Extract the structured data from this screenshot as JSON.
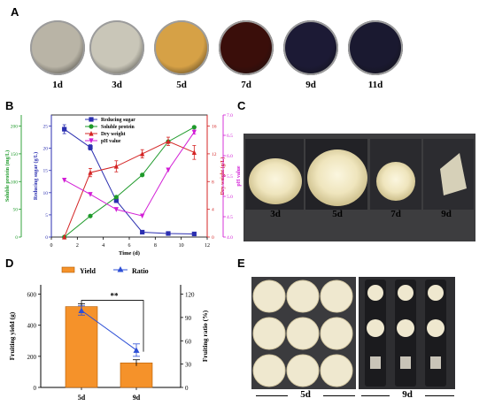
{
  "panels": {
    "a": "A",
    "b": "B",
    "c": "C",
    "d": "D",
    "e": "E"
  },
  "plates": {
    "labels": [
      "1d",
      "3d",
      "5d",
      "7d",
      "9d",
      "11d"
    ],
    "colors": [
      "#b9b4a6",
      "#c9c6b8",
      "#d6a146",
      "#3a0e0a",
      "#1c1a35",
      "#1a1930"
    ]
  },
  "photo_c": {
    "labels": [
      "3d",
      "5d",
      "7d",
      "9d"
    ]
  },
  "photo_e": {
    "labels": [
      "5d",
      "9d"
    ]
  },
  "chart_data": [
    {
      "type": "line",
      "x": [
        1,
        3,
        5,
        7,
        9,
        11
      ],
      "xlabel": "Time (d)",
      "xticks": [
        "0",
        "2",
        "4",
        "6",
        "8",
        "10",
        "12"
      ],
      "xlim": [
        0,
        12
      ],
      "series": [
        {
          "name": "Reducing sugar",
          "axis": "Reducing sugar (g/L)",
          "color": "#2b2fb0",
          "marker": "square",
          "values": [
            24.3,
            20.2,
            8.2,
            1.1,
            0.8,
            0.7
          ],
          "errors": [
            1.0,
            0.6,
            0.3,
            0.1,
            0.1,
            0.1
          ]
        },
        {
          "name": "Soluble protein",
          "axis": "Soluble protein (mg/L)",
          "color": "#1e9a2a",
          "marker": "circle",
          "values": [
            0,
            38,
            72,
            112,
            172,
            198
          ]
        },
        {
          "name": "Dry weight",
          "axis": "Dry weight (g/L)",
          "color": "#d42424",
          "marker": "triangle",
          "values": [
            0,
            9.3,
            10.2,
            12.0,
            13.8,
            12.2
          ],
          "errors": [
            0,
            0.6,
            0.8,
            0.6,
            0.6,
            1.0
          ]
        },
        {
          "name": "pH value",
          "axis": "pH value",
          "color": "#d21ed6",
          "marker": "triangle-down",
          "values": [
            5.4,
            5.05,
            4.68,
            4.52,
            5.65,
            6.58
          ],
          "errors": [
            0,
            0,
            0,
            0,
            0,
            0.05
          ]
        }
      ],
      "axes": {
        "soluble_protein": {
          "label": "Soluble protein (mg/L)",
          "ticks": [
            "0",
            "50",
            "100",
            "150",
            "200"
          ],
          "ylim": [
            0,
            220
          ],
          "color": "#1e9a2a"
        },
        "reducing_sugar": {
          "label": "Reducing sugar (g/L)",
          "ticks": [
            "0",
            "5",
            "10",
            "15",
            "20",
            "25"
          ],
          "ylim": [
            0,
            27.5
          ],
          "color": "#2b2fb0"
        },
        "dry_weight": {
          "label": "Dry weight (g/L)",
          "ticks": [
            "0",
            "4",
            "8",
            "12",
            "16"
          ],
          "ylim": [
            0,
            17.6
          ],
          "color": "#d42424"
        },
        "ph": {
          "label": "pH value",
          "ticks": [
            "4.0",
            "4.5",
            "5.0",
            "5.5",
            "6.0",
            "6.5",
            "7.0"
          ],
          "ylim": [
            4.0,
            7.0
          ],
          "color": "#d21ed6"
        }
      },
      "legend_position": "top-center"
    },
    {
      "type": "bar",
      "categories": [
        "5d",
        "9d"
      ],
      "series": [
        {
          "name": "Yield",
          "axis": "Fruiting yield (g)",
          "color": "#f5922a",
          "values": [
            520,
            158
          ],
          "errors": [
            18,
            20
          ]
        },
        {
          "name": "Ratio",
          "axis": "Fruiting ratio (%)",
          "color": "#2d4fd6",
          "type": "line",
          "values": [
            99,
            48
          ],
          "errors": [
            6,
            8
          ]
        }
      ],
      "ylabel": "Fruiting yield (g)",
      "y2label": "Fruiting ratio (%)",
      "yticks": [
        "0",
        "200",
        "400",
        "600"
      ],
      "y2ticks": [
        "0",
        "30",
        "60",
        "90",
        "120"
      ],
      "ylim": [
        0,
        660
      ],
      "y2lim": [
        0,
        132
      ],
      "significance": "**",
      "legend_position": "top"
    }
  ]
}
